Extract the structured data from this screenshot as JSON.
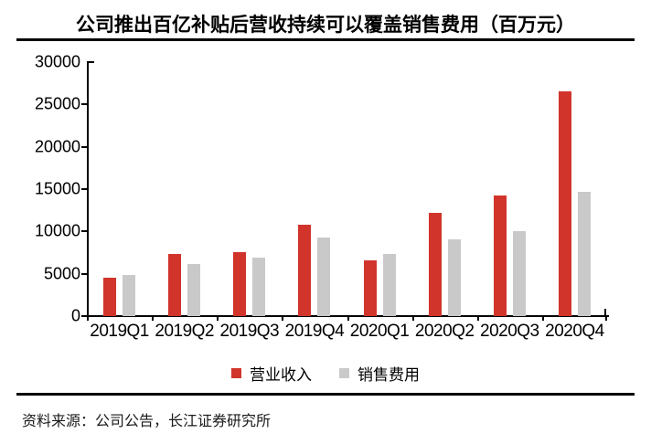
{
  "title": "公司推出百亿补贴后营收持续可以覆盖销售费用（百万元）",
  "source": "资料来源：公司公告，长江证券研究所",
  "colors": {
    "revenue_bar": "#d1342b",
    "expense_bar": "#c9c9c9",
    "axis": "#000000",
    "rule": "#000000"
  },
  "chart_data": {
    "type": "bar",
    "title": "公司推出百亿补贴后营收持续可以覆盖销售费用（百万元）",
    "categories": [
      "2019Q1",
      "2019Q2",
      "2019Q3",
      "2019Q4",
      "2020Q1",
      "2020Q2",
      "2020Q3",
      "2020Q4"
    ],
    "series": [
      {
        "key": "revenue",
        "name": "营业收入",
        "color": "#d1342b",
        "values": [
          4545,
          7290,
          7514,
          10793,
          6541,
          12193,
          14210,
          26548
        ]
      },
      {
        "key": "selling-expense",
        "name": "销售费用",
        "color": "#c9c9c9",
        "values": [
          4889,
          6104,
          6909,
          9273,
          7297,
          9114,
          10072,
          14713
        ]
      }
    ],
    "xlabel": "",
    "ylabel": "",
    "ylim": [
      0,
      30000
    ],
    "yticks": [
      0,
      5000,
      10000,
      15000,
      20000,
      25000,
      30000
    ],
    "grid": false,
    "legend_position": "bottom"
  }
}
